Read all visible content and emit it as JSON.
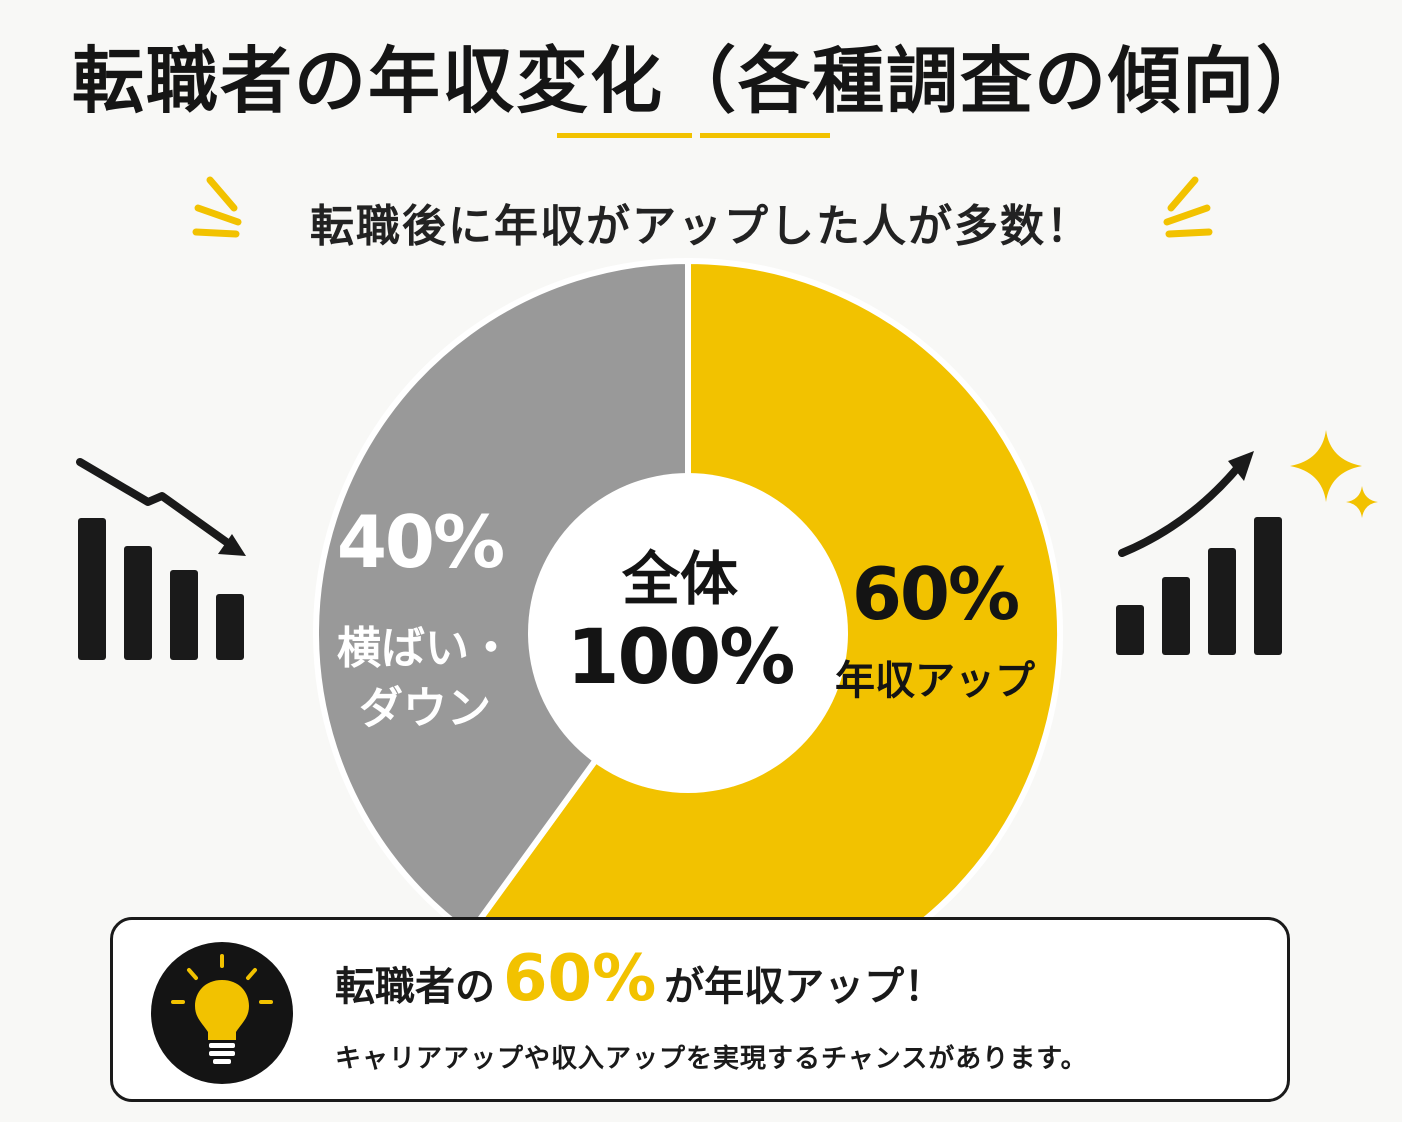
{
  "title": "転職者の年収変化（各種調査の傾向）",
  "subtitle": "転職後に年収がアップした人が多数！",
  "colors": {
    "accent": "#f2c200",
    "gray": "#999999",
    "dark": "#1a1a1a"
  },
  "chart_data": {
    "type": "pie",
    "center": {
      "line1": "全体",
      "line2": "100%"
    },
    "slices": [
      {
        "value": 60,
        "value_label": "60%",
        "label": "年収アップ",
        "color": "#f2c200"
      },
      {
        "value": 40,
        "value_label": "40%",
        "label_line1": "横ばい・",
        "label_line2": "ダウン",
        "color": "#999999"
      }
    ]
  },
  "icons": {
    "left": "bar-chart-down-icon",
    "right": "bar-chart-up-icon",
    "sparkle": "sparkle-icon",
    "bulb": "lightbulb-icon"
  },
  "callout": {
    "prefix": "転職者の",
    "highlight": "60%",
    "suffix": "が年収アップ！",
    "body": "キャリアアップや収入アップを実現するチャンスがあります。"
  }
}
